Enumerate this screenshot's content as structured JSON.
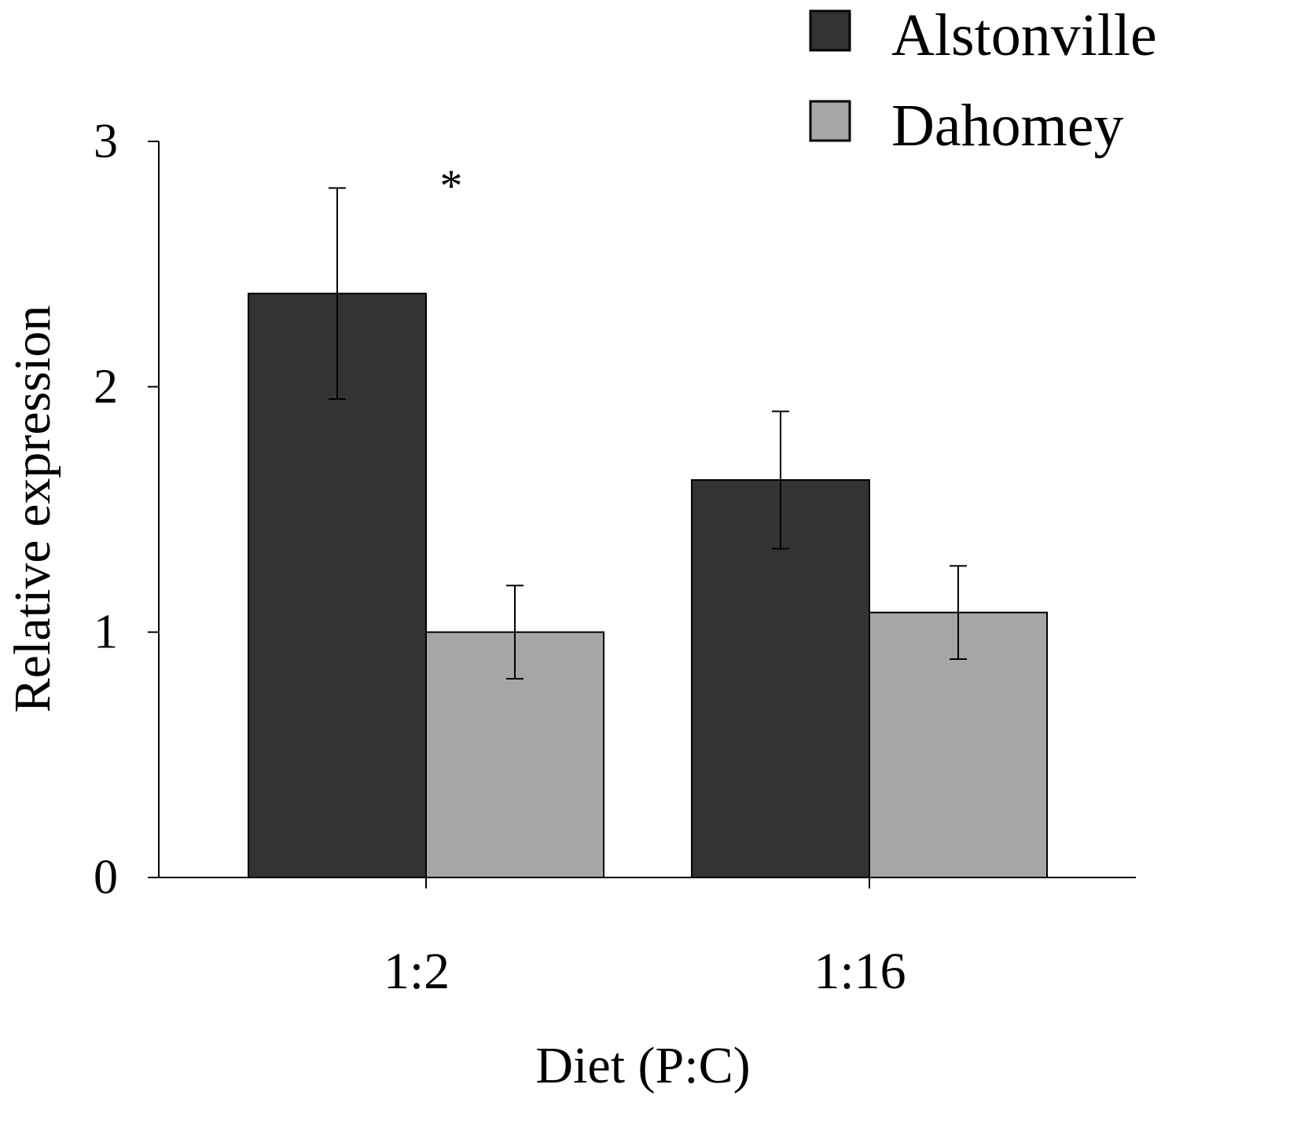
{
  "chart_data": {
    "type": "bar",
    "xlabel": "Diet (P:C)",
    "ylabel": "Relative expression",
    "categories": [
      "1:2",
      "1:16"
    ],
    "ylim": [
      0,
      3
    ],
    "yticks": [
      "0",
      "1",
      "2",
      "3"
    ],
    "grid": false,
    "legend_position": "top-right",
    "series": [
      {
        "name": "Alstonville",
        "color": "#333333",
        "values": [
          2.38,
          1.62
        ],
        "errors": [
          0.43,
          0.28
        ]
      },
      {
        "name": "Dahomey",
        "color": "#a6a6a6",
        "values": [
          1.0,
          1.08
        ],
        "errors": [
          0.19,
          0.19
        ]
      }
    ],
    "annotations": [
      {
        "text": "*",
        "category": "1:2"
      }
    ]
  }
}
